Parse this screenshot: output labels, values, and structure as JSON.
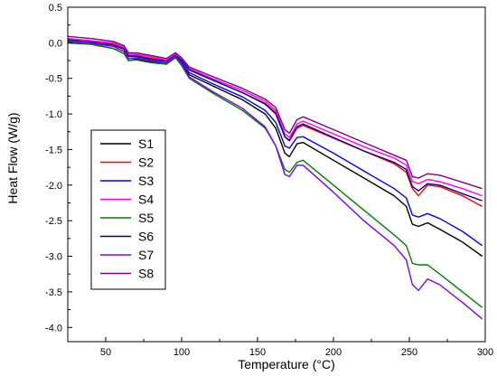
{
  "chart_data": {
    "type": "line",
    "title": "",
    "xlabel": "Temperature (°C)",
    "ylabel": "Heat Flow (W/g)",
    "xlim": [
      25,
      300
    ],
    "ylim": [
      -4.2,
      0.5
    ],
    "xticks": [
      50,
      100,
      150,
      200,
      250,
      300
    ],
    "xtick_labels": [
      "50",
      "100",
      "150",
      "200",
      "250",
      "300"
    ],
    "yticks": [
      0.5,
      0.0,
      -0.5,
      -1.0,
      -1.5,
      -2.0,
      -2.5,
      -3.0,
      -3.5,
      -4.0
    ],
    "ytick_labels": [
      "0.5",
      "0.0",
      "-0.5",
      "-1.0",
      "-1.5",
      "-2.0",
      "-2.5",
      "-3.0",
      "-3.5",
      "-4.0"
    ],
    "grid": false,
    "legend_position": "left",
    "series": [
      {
        "name": "S1",
        "color": "#000000",
        "x": [
          25,
          40,
          55,
          62,
          65,
          70,
          80,
          90,
          96,
          100,
          105,
          120,
          140,
          155,
          162,
          168,
          171,
          176,
          180,
          200,
          220,
          240,
          248,
          252,
          256,
          262,
          270,
          285,
          298
        ],
        "y": [
          0.0,
          -0.02,
          -0.08,
          -0.15,
          -0.25,
          -0.23,
          -0.27,
          -0.3,
          -0.2,
          -0.3,
          -0.45,
          -0.6,
          -0.8,
          -1.0,
          -1.2,
          -1.55,
          -1.6,
          -1.42,
          -1.4,
          -1.65,
          -1.9,
          -2.15,
          -2.3,
          -2.55,
          -2.58,
          -2.53,
          -2.62,
          -2.8,
          -3.0
        ]
      },
      {
        "name": "S2",
        "color": "#ff0000",
        "x": [
          25,
          40,
          55,
          62,
          65,
          70,
          80,
          90,
          96,
          100,
          105,
          120,
          140,
          155,
          162,
          168,
          171,
          176,
          180,
          200,
          220,
          240,
          248,
          252,
          256,
          262,
          270,
          285,
          298
        ],
        "y": [
          0.05,
          0.02,
          -0.02,
          -0.08,
          -0.18,
          -0.18,
          -0.22,
          -0.25,
          -0.17,
          -0.25,
          -0.38,
          -0.52,
          -0.7,
          -0.85,
          -0.98,
          -1.32,
          -1.38,
          -1.2,
          -1.16,
          -1.34,
          -1.52,
          -1.7,
          -1.82,
          -2.05,
          -2.15,
          -2.0,
          -2.02,
          -2.15,
          -2.3
        ]
      },
      {
        "name": "S3",
        "color": "#0000ff",
        "x": [
          25,
          40,
          55,
          62,
          65,
          70,
          80,
          90,
          96,
          100,
          105,
          120,
          140,
          155,
          162,
          168,
          171,
          176,
          180,
          200,
          220,
          240,
          248,
          252,
          256,
          262,
          270,
          285,
          298
        ],
        "y": [
          0.02,
          -0.01,
          -0.05,
          -0.12,
          -0.22,
          -0.21,
          -0.25,
          -0.28,
          -0.19,
          -0.28,
          -0.42,
          -0.57,
          -0.76,
          -0.95,
          -1.12,
          -1.45,
          -1.48,
          -1.33,
          -1.32,
          -1.55,
          -1.8,
          -2.05,
          -2.18,
          -2.42,
          -2.45,
          -2.4,
          -2.47,
          -2.65,
          -2.85
        ]
      },
      {
        "name": "S4",
        "color": "#ff00ff",
        "x": [
          25,
          40,
          55,
          62,
          65,
          70,
          80,
          90,
          96,
          100,
          105,
          120,
          140,
          155,
          162,
          168,
          171,
          176,
          180,
          200,
          220,
          240,
          248,
          252,
          256,
          262,
          270,
          285,
          298
        ],
        "y": [
          0.06,
          0.03,
          0.0,
          -0.06,
          -0.16,
          -0.16,
          -0.2,
          -0.24,
          -0.16,
          -0.23,
          -0.36,
          -0.5,
          -0.67,
          -0.82,
          -0.95,
          -1.28,
          -1.33,
          -1.14,
          -1.1,
          -1.28,
          -1.46,
          -1.62,
          -1.72,
          -1.95,
          -1.98,
          -1.92,
          -1.95,
          -2.05,
          -2.15
        ]
      },
      {
        "name": "S5",
        "color": "#008000",
        "x": [
          25,
          40,
          55,
          62,
          65,
          70,
          80,
          90,
          96,
          100,
          105,
          120,
          140,
          155,
          162,
          168,
          171,
          176,
          180,
          200,
          220,
          240,
          248,
          252,
          256,
          262,
          270,
          285,
          298
        ],
        "y": [
          0.01,
          -0.02,
          -0.08,
          -0.15,
          -0.25,
          -0.24,
          -0.28,
          -0.3,
          -0.21,
          -0.32,
          -0.5,
          -0.7,
          -0.95,
          -1.2,
          -1.45,
          -1.78,
          -1.82,
          -1.68,
          -1.65,
          -2.0,
          -2.35,
          -2.7,
          -2.85,
          -3.1,
          -3.12,
          -3.12,
          -3.25,
          -3.5,
          -3.72
        ]
      },
      {
        "name": "S6",
        "color": "#000080",
        "x": [
          25,
          40,
          55,
          62,
          65,
          70,
          80,
          90,
          96,
          100,
          105,
          120,
          140,
          155,
          162,
          168,
          171,
          176,
          180,
          200,
          220,
          240,
          248,
          252,
          256,
          262,
          270,
          285,
          298
        ],
        "y": [
          0.04,
          0.01,
          -0.03,
          -0.09,
          -0.19,
          -0.19,
          -0.23,
          -0.26,
          -0.18,
          -0.25,
          -0.38,
          -0.52,
          -0.7,
          -0.86,
          -1.0,
          -1.32,
          -1.37,
          -1.18,
          -1.14,
          -1.33,
          -1.52,
          -1.68,
          -1.78,
          -2.02,
          -2.08,
          -1.98,
          -2.0,
          -2.12,
          -2.22
        ]
      },
      {
        "name": "S7",
        "color": "#8000ff",
        "x": [
          25,
          40,
          55,
          62,
          65,
          70,
          80,
          90,
          96,
          100,
          105,
          120,
          140,
          155,
          162,
          168,
          171,
          176,
          180,
          200,
          220,
          240,
          248,
          252,
          256,
          262,
          270,
          285,
          298
        ],
        "y": [
          0.03,
          0.0,
          -0.05,
          -0.12,
          -0.22,
          -0.21,
          -0.25,
          -0.28,
          -0.19,
          -0.3,
          -0.48,
          -0.68,
          -0.92,
          -1.18,
          -1.45,
          -1.85,
          -1.88,
          -1.72,
          -1.72,
          -2.1,
          -2.5,
          -2.85,
          -3.05,
          -3.4,
          -3.48,
          -3.32,
          -3.4,
          -3.65,
          -3.88
        ]
      },
      {
        "name": "S8",
        "color": "#800080",
        "x": [
          25,
          40,
          55,
          62,
          65,
          70,
          80,
          90,
          96,
          100,
          105,
          120,
          140,
          155,
          162,
          168,
          171,
          176,
          180,
          200,
          220,
          240,
          248,
          252,
          256,
          262,
          270,
          285,
          298
        ],
        "y": [
          0.09,
          0.06,
          0.02,
          -0.04,
          -0.14,
          -0.14,
          -0.18,
          -0.22,
          -0.14,
          -0.21,
          -0.34,
          -0.47,
          -0.64,
          -0.79,
          -0.91,
          -1.22,
          -1.27,
          -1.08,
          -1.04,
          -1.22,
          -1.4,
          -1.58,
          -1.65,
          -1.88,
          -1.9,
          -1.84,
          -1.86,
          -1.96,
          -2.05
        ]
      }
    ]
  }
}
